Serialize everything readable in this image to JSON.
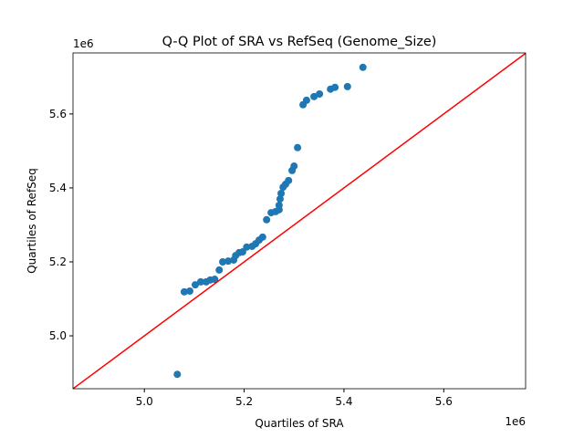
{
  "chart_data": {
    "type": "scatter",
    "title": "Q-Q Plot of SRA vs RefSeq (Genome_Size)",
    "xlabel": "Quartiles of SRA",
    "ylabel": "Quartiles of RefSeq",
    "x_offset_label": "1e6",
    "y_offset_label": "1e6",
    "x": [
      5.066,
      5.08,
      5.091,
      5.102,
      5.113,
      5.124,
      5.132,
      5.141,
      5.15,
      5.157,
      5.168,
      5.179,
      5.183,
      5.19,
      5.197,
      5.205,
      5.216,
      5.223,
      5.23,
      5.237,
      5.245,
      5.254,
      5.263,
      5.27,
      5.27,
      5.272,
      5.274,
      5.278,
      5.283,
      5.289,
      5.296,
      5.3,
      5.307,
      5.318,
      5.325,
      5.34,
      5.351,
      5.373,
      5.382,
      5.407,
      5.438
    ],
    "values": [
      4.896,
      5.119,
      5.121,
      5.138,
      5.146,
      5.146,
      5.151,
      5.153,
      5.178,
      5.2,
      5.202,
      5.205,
      5.217,
      5.225,
      5.227,
      5.24,
      5.242,
      5.249,
      5.259,
      5.267,
      5.314,
      5.333,
      5.336,
      5.341,
      5.353,
      5.37,
      5.385,
      5.402,
      5.41,
      5.42,
      5.447,
      5.459,
      5.509,
      5.625,
      5.637,
      5.647,
      5.654,
      5.667,
      5.672,
      5.674,
      5.726
    ],
    "color": "#1f77b4",
    "reference_line": {
      "slope": 1,
      "intercept": 0,
      "color": "#ff0000"
    },
    "xlim": [
      4.857,
      5.764
    ],
    "ylim": [
      4.857,
      5.765
    ],
    "xticks": [
      {
        "value": 5.0,
        "label": "5.0"
      },
      {
        "value": 5.2,
        "label": "5.2"
      },
      {
        "value": 5.4,
        "label": "5.4"
      },
      {
        "value": 5.6,
        "label": "5.6"
      }
    ],
    "yticks": [
      {
        "value": 5.0,
        "label": "5.0"
      },
      {
        "value": 5.2,
        "label": "5.2"
      },
      {
        "value": 5.4,
        "label": "5.4"
      },
      {
        "value": 5.6,
        "label": "5.6"
      }
    ],
    "grid": false
  }
}
